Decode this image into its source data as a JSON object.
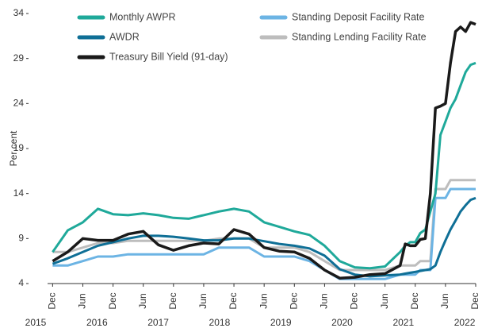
{
  "chart_data": {
    "type": "line",
    "y_label": "Per cent",
    "x": [
      "2015-12",
      "2016-03",
      "2016-06",
      "2016-09",
      "2016-12",
      "2017-03",
      "2017-06",
      "2017-09",
      "2017-12",
      "2018-03",
      "2018-06",
      "2018-09",
      "2018-12",
      "2019-03",
      "2019-06",
      "2019-09",
      "2019-12",
      "2020-03",
      "2020-06",
      "2020-09",
      "2020-12",
      "2021-03",
      "2021-06",
      "2021-09",
      "2021-10",
      "2021-11",
      "2021-12",
      "2022-01",
      "2022-02",
      "2022-03",
      "2022-04",
      "2022-05",
      "2022-06",
      "2022-07",
      "2022-08",
      "2022-09",
      "2022-10",
      "2022-11",
      "2022-12"
    ],
    "xlim": [
      "2015-11",
      "2022-12"
    ],
    "xticks": [
      {
        "value": "2015-12",
        "label": "Dec"
      },
      {
        "value": "2016-06",
        "label": "Jun"
      },
      {
        "value": "2016-12",
        "label": "Dec"
      },
      {
        "value": "2017-06",
        "label": "Jun"
      },
      {
        "value": "2017-12",
        "label": "Dec"
      },
      {
        "value": "2018-06",
        "label": "Jun"
      },
      {
        "value": "2018-12",
        "label": "Dec"
      },
      {
        "value": "2019-06",
        "label": "Jun"
      },
      {
        "value": "2019-12",
        "label": "Dec"
      },
      {
        "value": "2020-06",
        "label": "Jun"
      },
      {
        "value": "2020-12",
        "label": "Dec"
      },
      {
        "value": "2021-06",
        "label": "Jun"
      },
      {
        "value": "2021-12",
        "label": "Dec"
      },
      {
        "value": "2022-06",
        "label": "Jun"
      },
      {
        "value": "2022-12",
        "label": "Dec"
      }
    ],
    "x_year_labels": [
      "2015",
      "2016",
      "2017",
      "2018",
      "2019",
      "2020",
      "2021",
      "2022"
    ],
    "ylim": [
      4,
      34
    ],
    "yticks": [
      4,
      9,
      14,
      19,
      24,
      29,
      34
    ],
    "grid": false,
    "series": [
      {
        "name": "Monthly AWPR",
        "color": "#1fa99a",
        "values": [
          7.5,
          9.9,
          10.8,
          12.3,
          11.7,
          11.6,
          11.8,
          11.6,
          11.3,
          11.2,
          11.6,
          12.0,
          12.3,
          12.0,
          10.8,
          10.3,
          9.8,
          9.4,
          8.2,
          6.5,
          5.8,
          5.7,
          5.9,
          7.5,
          8.2,
          8.6,
          8.6,
          9.6,
          10.0,
          12.0,
          14.0,
          20.5,
          22.0,
          23.5,
          24.5,
          26.0,
          27.5,
          28.3,
          28.5
        ]
      },
      {
        "name": "AWDR",
        "color": "#0f6f96",
        "values": [
          6.2,
          6.8,
          7.5,
          8.2,
          8.6,
          9.0,
          9.3,
          9.3,
          9.2,
          9.0,
          8.8,
          8.8,
          9.0,
          9.0,
          8.7,
          8.4,
          8.2,
          7.9,
          7.1,
          5.6,
          5.0,
          4.8,
          4.9,
          5.0,
          5.1,
          5.2,
          5.3,
          5.4,
          5.5,
          5.6,
          6.0,
          7.5,
          8.8,
          10.0,
          11.0,
          12.0,
          12.7,
          13.3,
          13.5
        ]
      },
      {
        "name": "Treasury Bill Yield (91-day)",
        "color": "#1a1a1a",
        "values": [
          6.5,
          7.5,
          9.0,
          8.8,
          8.8,
          9.5,
          9.8,
          8.3,
          7.7,
          8.2,
          8.5,
          8.4,
          10.0,
          9.5,
          8.0,
          7.6,
          7.5,
          6.8,
          5.5,
          4.6,
          4.7,
          5.0,
          5.1,
          6.0,
          8.4,
          8.2,
          8.2,
          8.9,
          9.0,
          14.0,
          23.5,
          23.7,
          24.0,
          28.5,
          32.0,
          32.5,
          32.0,
          33.0,
          32.8
        ]
      },
      {
        "name": "Standing Deposit Facility Rate",
        "color": "#6cb4e4",
        "values": [
          6.0,
          6.0,
          6.5,
          7.0,
          7.0,
          7.25,
          7.25,
          7.25,
          7.25,
          7.25,
          7.25,
          8.0,
          8.0,
          8.0,
          7.0,
          7.0,
          7.0,
          6.5,
          5.5,
          4.5,
          4.5,
          4.5,
          4.5,
          5.0,
          5.0,
          5.0,
          5.0,
          5.5,
          5.5,
          5.5,
          13.5,
          13.5,
          13.5,
          14.5,
          14.5,
          14.5,
          14.5,
          14.5,
          14.5
        ]
      },
      {
        "name": "Standing Lending Facility Rate",
        "color": "#bdbdbd",
        "values": [
          7.5,
          7.5,
          8.0,
          8.5,
          8.5,
          8.75,
          8.75,
          8.75,
          8.75,
          8.75,
          8.75,
          9.0,
          9.0,
          9.0,
          8.0,
          8.0,
          8.0,
          7.5,
          6.5,
          5.5,
          5.5,
          5.5,
          5.5,
          6.0,
          6.0,
          6.0,
          6.0,
          6.5,
          6.5,
          6.5,
          14.5,
          14.5,
          14.5,
          15.5,
          15.5,
          15.5,
          15.5,
          15.5,
          15.5
        ]
      }
    ]
  }
}
